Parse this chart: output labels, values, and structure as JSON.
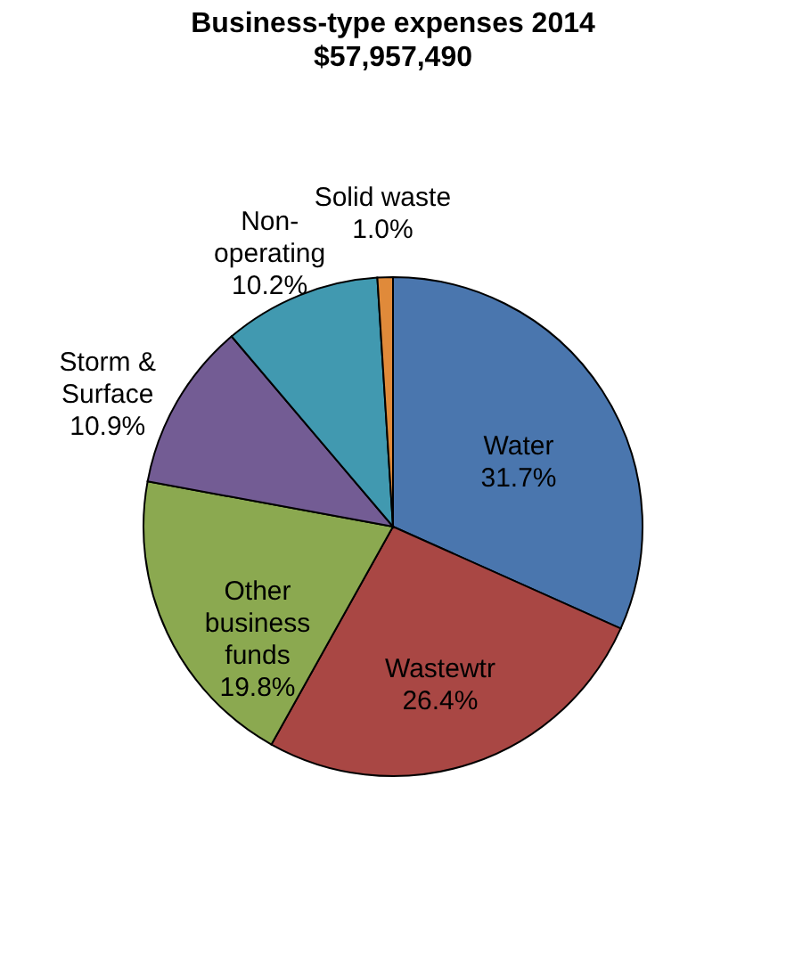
{
  "chart_data": {
    "type": "pie",
    "title": "Business-type expenses 2014",
    "subtitle": "$57,957,490",
    "categories": [
      "Water",
      "Wastewtr",
      "Other business funds",
      "Storm & Surface",
      "Non-operating",
      "Solid waste"
    ],
    "values": [
      31.7,
      26.4,
      19.8,
      10.9,
      10.2,
      1.0
    ],
    "value_labels": [
      "31.7%",
      "26.4%",
      "19.8%",
      "10.9%",
      "10.2%",
      "1.0%"
    ],
    "colors": [
      "#4a76ae",
      "#a94744",
      "#8ba950",
      "#735c94",
      "#4199b0",
      "#e08a3a"
    ],
    "legend": false
  }
}
